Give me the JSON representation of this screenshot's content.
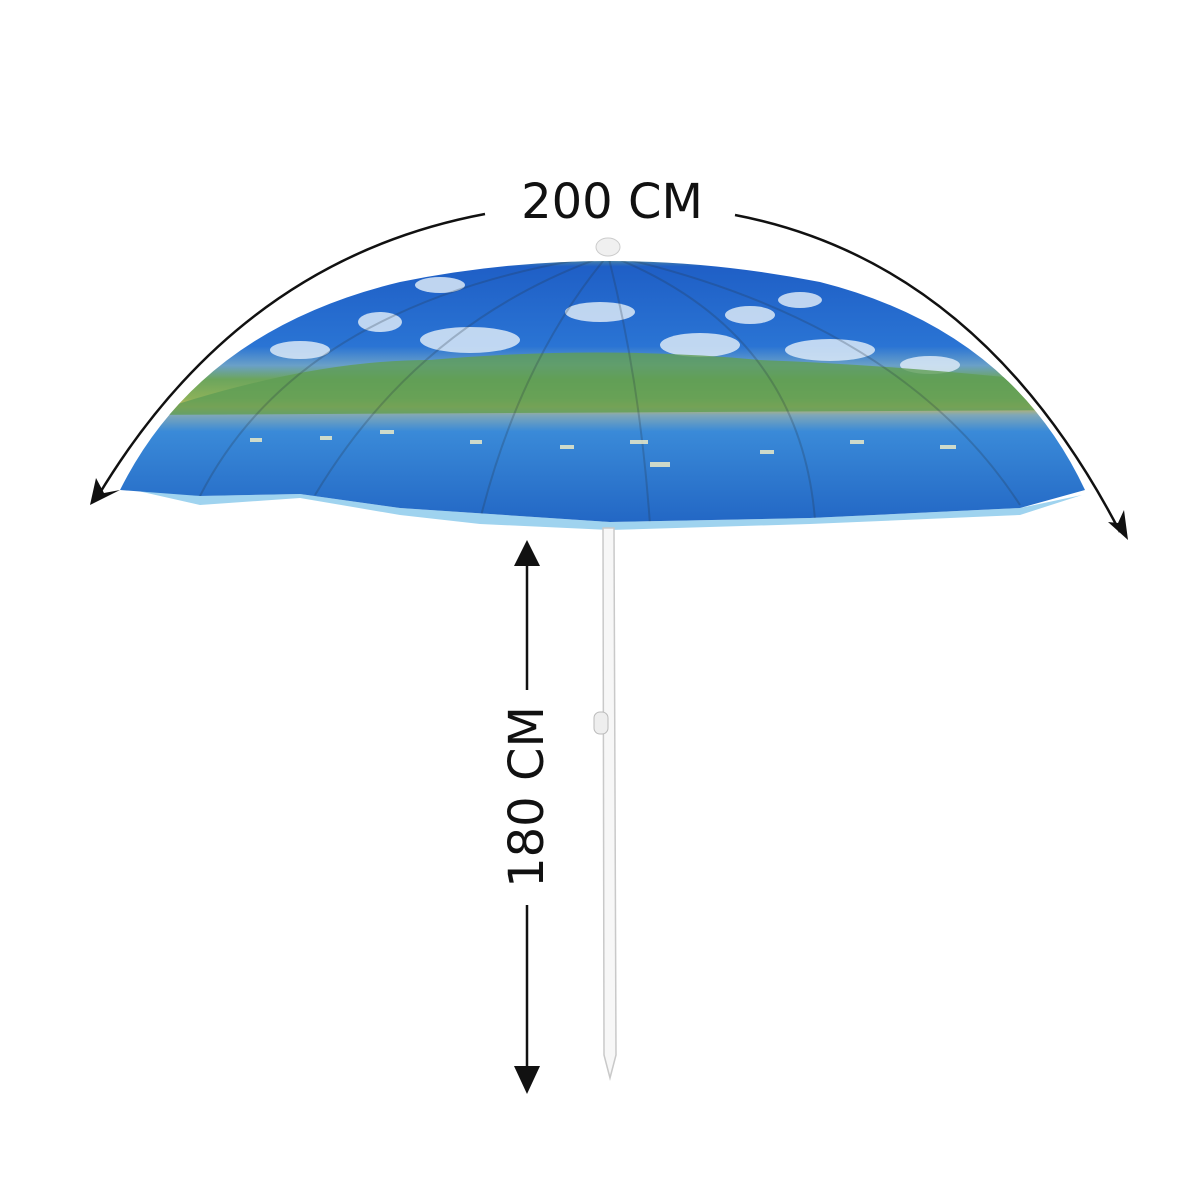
{
  "width_label": "200 CM",
  "height_label": "180 CM"
}
